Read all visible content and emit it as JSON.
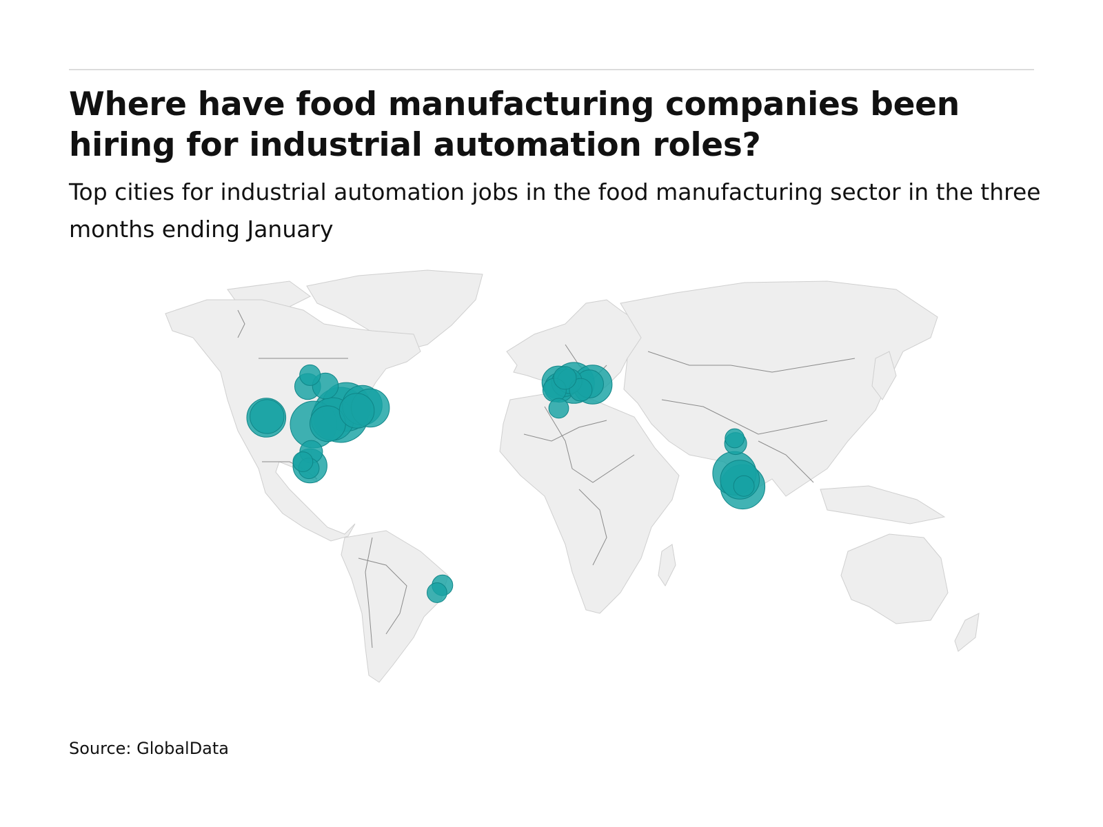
{
  "title": "Where have food manufacturing companies been hiring for industrial automation roles?",
  "subtitle": "Top cities for industrial automation jobs in the food manufacturing sector in the three months ending January",
  "source": "Source: GlobalData",
  "colors": {
    "bubble": "#17a2a4",
    "land": "#eeeeee",
    "border": "#8a8a8a"
  },
  "chart_data": {
    "type": "bubble-map",
    "title": "Where have food manufacturing companies been hiring for industrial automation roles?",
    "subtitle": "Top cities for industrial automation jobs in the food manufacturing sector in the three months ending January",
    "size_scale": "relative",
    "points": [
      {
        "lon": -90.0,
        "lat": 39.0,
        "size": 1.0
      },
      {
        "lon": -87.7,
        "lat": 41.9,
        "size": 0.78
      },
      {
        "lon": -101.5,
        "lat": 35.5,
        "size": 0.72
      },
      {
        "lon": -93.5,
        "lat": 37.5,
        "size": 0.6
      },
      {
        "lon": -80.9,
        "lat": 42.5,
        "size": 0.52
      },
      {
        "lon": -77.5,
        "lat": 41.5,
        "size": 0.48
      },
      {
        "lon": -95.5,
        "lat": 35.8,
        "size": 0.42
      },
      {
        "lon": -83.2,
        "lat": 40.5,
        "size": 0.4
      },
      {
        "lon": -121.5,
        "lat": 38.0,
        "size": 0.5
      },
      {
        "lon": -121.2,
        "lat": 38.4,
        "size": 0.38
      },
      {
        "lon": -103.0,
        "lat": 20.5,
        "size": 0.38
      },
      {
        "lon": -104.0,
        "lat": 49.3,
        "size": 0.22
      },
      {
        "lon": -96.5,
        "lat": 49.5,
        "size": 0.22
      },
      {
        "lon": -103.0,
        "lat": 53.4,
        "size": 0.14
      },
      {
        "lon": -102.5,
        "lat": 25.6,
        "size": 0.17
      },
      {
        "lon": -106.0,
        "lat": 22.0,
        "size": 0.13
      },
      {
        "lon": -103.5,
        "lat": 19.6,
        "size": 0.14
      },
      {
        "lon": -47.0,
        "lat": -22.8,
        "size": 0.14
      },
      {
        "lon": -49.3,
        "lat": -25.5,
        "size": 0.13
      },
      {
        "lon": 8.6,
        "lat": 50.6,
        "size": 0.55
      },
      {
        "lon": 16.5,
        "lat": 50.0,
        "size": 0.5
      },
      {
        "lon": 2.0,
        "lat": 50.8,
        "size": 0.35
      },
      {
        "lon": 2.4,
        "lat": 48.9,
        "size": 0.28
      },
      {
        "lon": 5.0,
        "lat": 50.7,
        "size": 0.25
      },
      {
        "lon": 15.2,
        "lat": 50.2,
        "size": 0.26
      },
      {
        "lon": 6.8,
        "lat": 51.2,
        "size": 0.2
      },
      {
        "lon": 11.5,
        "lat": 48.1,
        "size": 0.17
      },
      {
        "lon": 0.4,
        "lat": 48.0,
        "size": 0.18
      },
      {
        "lon": 4.8,
        "lat": 52.4,
        "size": 0.17
      },
      {
        "lon": 2.2,
        "lat": 41.4,
        "size": 0.13
      },
      {
        "lon": 76.5,
        "lat": 17.8,
        "size": 0.62
      },
      {
        "lon": 80.0,
        "lat": 12.9,
        "size": 0.65
      },
      {
        "lon": 78.8,
        "lat": 15.5,
        "size": 0.5
      },
      {
        "lon": 77.0,
        "lat": 28.6,
        "size": 0.16
      },
      {
        "lon": 76.6,
        "lat": 30.5,
        "size": 0.12
      },
      {
        "lon": 80.5,
        "lat": 13.2,
        "size": 0.14
      }
    ]
  }
}
